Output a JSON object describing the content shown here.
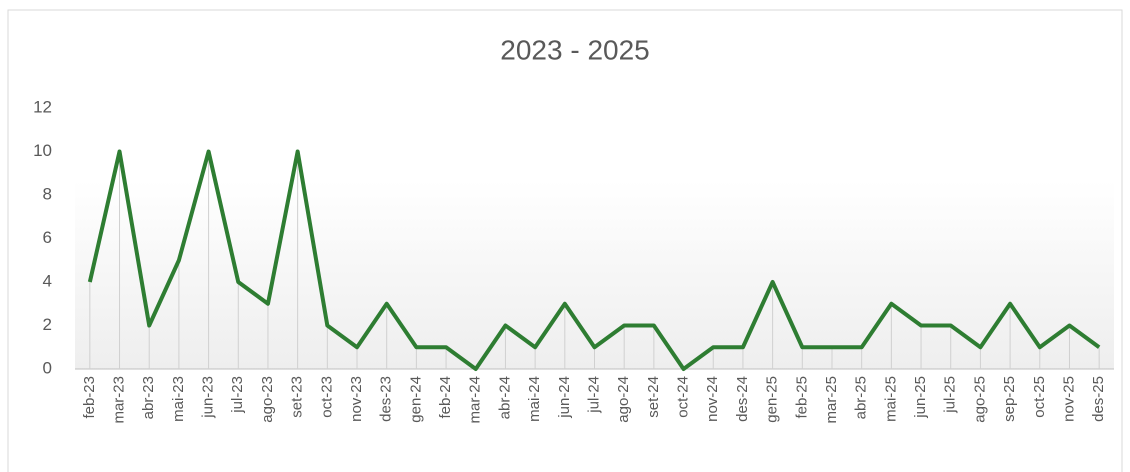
{
  "chart_data": {
    "type": "line",
    "title": "2023 - 2025",
    "categories": [
      "feb-23",
      "mar-23",
      "abr-23",
      "mai-23",
      "jun-23",
      "jul-23",
      "ago-23",
      "set-23",
      "oct-23",
      "nov-23",
      "des-23",
      "gen-24",
      "feb-24",
      "mar-24",
      "abr-24",
      "mai-24",
      "jun-24",
      "jul-24",
      "ago-24",
      "set-24",
      "oct-24",
      "nov-24",
      "des-24",
      "gen-25",
      "feb-25",
      "mar-25",
      "abr-25",
      "mai-25",
      "jun-25",
      "jul-25",
      "ago-25",
      "sep-25",
      "oct-25",
      "nov-25",
      "des-25"
    ],
    "values": [
      4,
      10,
      2,
      5,
      10,
      4,
      3,
      10,
      2,
      1,
      3,
      1,
      1,
      0,
      2,
      1,
      3,
      1,
      2,
      2,
      0,
      1,
      1,
      4,
      1,
      1,
      1,
      3,
      2,
      2,
      1,
      3,
      1,
      2,
      1
    ],
    "color": "#2e7d32",
    "ylim": [
      0,
      12
    ],
    "yticks": [
      0,
      2,
      4,
      6,
      8,
      10,
      12
    ],
    "grid": false,
    "drop_lines": true
  }
}
